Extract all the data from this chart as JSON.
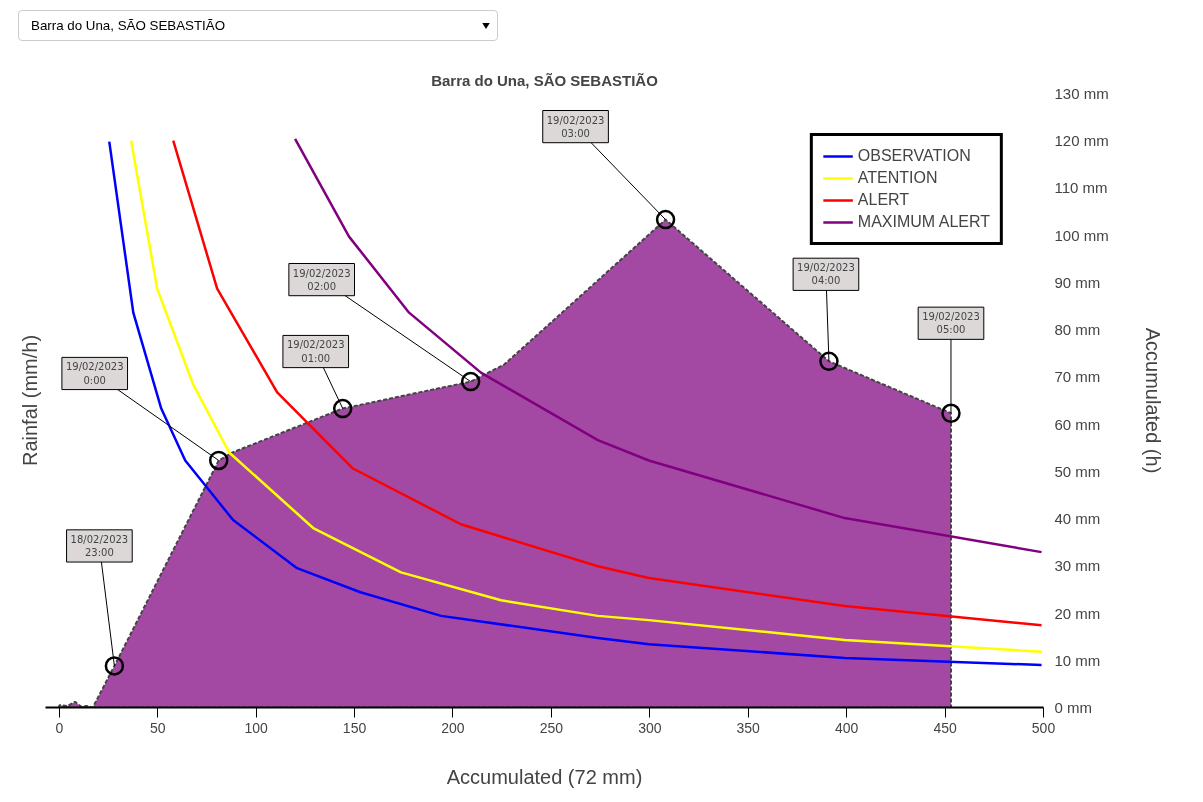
{
  "chart_data": {
    "type": "line",
    "title": "Barra do Una, SÃO SEBASTIÃO",
    "xlabel": "Accumulated (72 mm)",
    "ylabel": "Rainfal (mm/h)",
    "y2label": "Accumulated (h)",
    "xlim": [
      -7,
      500
    ],
    "xticks": [
      0,
      50,
      100,
      150,
      200,
      250,
      300,
      350,
      400,
      450,
      500
    ],
    "ylim": [
      0,
      130
    ],
    "yticks": [
      {
        "value": 0,
        "label": "0 mm"
      },
      {
        "value": 10,
        "label": "10 mm"
      },
      {
        "value": 20,
        "label": "20 mm"
      },
      {
        "value": 30,
        "label": "30 mm"
      },
      {
        "value": 40,
        "label": "40 mm"
      },
      {
        "value": 50,
        "label": "50 mm"
      },
      {
        "value": 60,
        "label": "60 mm"
      },
      {
        "value": 70,
        "label": "70 mm"
      },
      {
        "value": 80,
        "label": "80 mm"
      },
      {
        "value": 90,
        "label": "90 mm"
      },
      {
        "value": 100,
        "label": "100 mm"
      },
      {
        "value": 110,
        "label": "110 mm"
      },
      {
        "value": 120,
        "label": "120 mm"
      },
      {
        "value": 130,
        "label": "130 mm"
      }
    ],
    "legend": "top right",
    "series": [
      {
        "type": "area",
        "color": "#a349a4",
        "line_style": "dashed",
        "x": [
          0,
          4,
          8,
          11,
          14,
          17,
          28,
          81,
          88,
          144,
          209,
          226,
          308,
          391,
          453,
          453
        ],
        "values": [
          0.5,
          0.3,
          1.2,
          0.2,
          0.3,
          0,
          8.8,
          52.3,
          54,
          63.3,
          69,
          72.6,
          103.3,
          73.3,
          62.3,
          0
        ]
      },
      {
        "name": "OBSERVATION",
        "color": "#0000ff",
        "x": [
          25.4,
          37.6,
          51.8,
          64,
          88.3,
          120.8,
          153,
          194,
          273.6,
          299.5,
          399,
          499
        ],
        "values": [
          119.8,
          83.6,
          63.3,
          52.3,
          39.7,
          29.5,
          24.4,
          19.4,
          14.7,
          13.4,
          10.5,
          9.0
        ]
      },
      {
        "name": "ATENTION",
        "color": "#ffff00",
        "x": [
          36.5,
          49.7,
          68,
          86.3,
          129,
          173.6,
          224.4,
          273.6,
          299.5,
          399,
          499
        ],
        "values": [
          120,
          88.7,
          68.4,
          54,
          38,
          28.6,
          22.7,
          19.4,
          18.5,
          14.3,
          11.8
        ]
      },
      {
        "name": "ALERT",
        "color": "#ff0000",
        "x": [
          57.9,
          80.2,
          110.7,
          149.2,
          204,
          273.6,
          299.5,
          399,
          499
        ],
        "values": [
          120,
          88.7,
          66.7,
          50.6,
          38.8,
          29.9,
          27.4,
          21.5,
          17.4
        ]
      },
      {
        "name": "MAXIMUM ALERT",
        "color": "#800080",
        "x": [
          119.8,
          147.2,
          177.7,
          214.2,
          273.6,
          299.5,
          399,
          499
        ],
        "values": [
          120.4,
          99.7,
          83.6,
          70.9,
          56.6,
          52.3,
          40.1,
          32.9
        ]
      },
      {
        "type": "scatter",
        "color": "#000000",
        "marker": "circle",
        "x": [
          28,
          81,
          144,
          209,
          308,
          391,
          453
        ],
        "values": [
          8.8,
          52.3,
          63.3,
          69,
          103.3,
          73.3,
          62.3
        ]
      }
    ],
    "annotations": [
      "Barra do Una, SÃO SEBASTIÃO",
      {
        "text": "18/02/2023\n23:00",
        "x": 28,
        "y": 8.8
      },
      {
        "text": "19/02/2023\n0:00",
        "x": 81,
        "y": 52.3
      },
      {
        "text": "19/02/2023\n01:00",
        "x": 144,
        "y": 63.3
      },
      {
        "text": "19/02/2023\n02:00",
        "x": 209,
        "y": 69
      },
      {
        "text": "19/02/2023\n03:00",
        "x": 308,
        "y": 103.3
      },
      {
        "text": "19/02/2023\n04:00",
        "x": 391,
        "y": 73.3
      },
      {
        "text": "19/02/2023\n05:00",
        "x": 453,
        "y": 62.3
      }
    ]
  }
}
